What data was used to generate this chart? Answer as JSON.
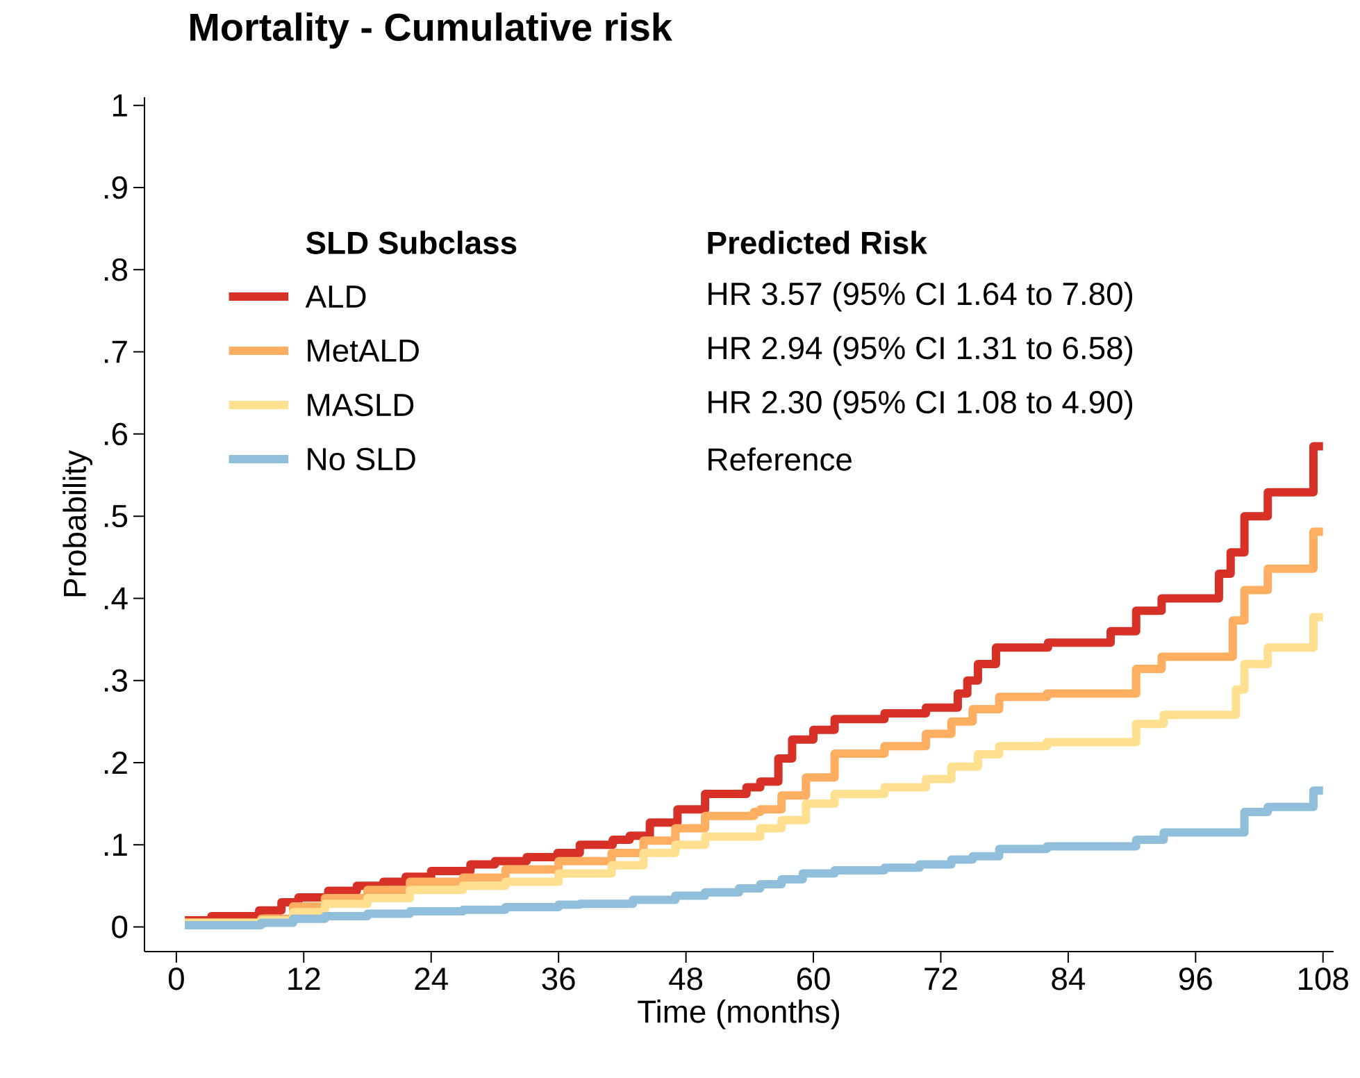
{
  "chart_data": {
    "type": "step",
    "title": "Mortality - Cumulative risk",
    "xlabel": "Time (months)",
    "ylabel": "Probability",
    "legend_title": "SLD Subclass",
    "legend": "top left",
    "grid": false,
    "annotations": [
      "Predicted Risk",
      "HR 3.57 (95% CI 1.64 to 7.80)",
      "HR 2.94 (95% CI 1.31 to 6.58)",
      "HR 2.30 (95% CI 1.08 to 4.90)",
      "Reference"
    ],
    "xlim": [
      -3,
      109
    ],
    "ylim": [
      -0.03,
      1.01
    ],
    "xticks": [
      0,
      12,
      24,
      36,
      48,
      60,
      72,
      84,
      96,
      108
    ],
    "yticks": [
      0,
      {
        "value": 0.1,
        "label": ".1"
      },
      {
        "value": 0.2,
        "label": ".2"
      },
      {
        "value": 0.3,
        "label": ".3"
      },
      {
        "value": 0.4,
        "label": ".4"
      },
      {
        "value": 0.5,
        "label": ".5"
      },
      {
        "value": 0.6,
        "label": ".6"
      },
      {
        "value": 0.7,
        "label": ".7"
      },
      {
        "value": 0.8,
        "label": ".8"
      },
      {
        "value": 0.9,
        "label": ".9"
      },
      1
    ],
    "series": [
      {
        "name": "ALD",
        "color": "#d73027",
        "x": [
          0.8,
          3.3,
          7.8,
          9.9,
          11.5,
          14.3,
          17,
          19.5,
          21.6,
          24,
          27.7,
          30,
          33,
          35.9,
          38,
          41.1,
          42.7,
          44.6,
          47.2,
          49.8,
          53.7,
          55,
          56.7,
          58,
          60,
          62,
          66.7,
          70.6,
          73.6,
          74.5,
          75.5,
          77.2,
          82.1,
          88,
          90.4,
          92.8,
          98.2,
          99.3,
          100.6,
          102.8,
          107.1,
          108
        ],
        "values": [
          0.008,
          0.013,
          0.02,
          0.03,
          0.036,
          0.044,
          0.05,
          0.055,
          0.061,
          0.068,
          0.076,
          0.08,
          0.085,
          0.09,
          0.1,
          0.106,
          0.111,
          0.127,
          0.143,
          0.162,
          0.17,
          0.177,
          0.205,
          0.228,
          0.24,
          0.253,
          0.26,
          0.267,
          0.284,
          0.3,
          0.32,
          0.34,
          0.346,
          0.36,
          0.385,
          0.4,
          0.43,
          0.456,
          0.5,
          0.529,
          0.585,
          0.585
        ]
      },
      {
        "name": "MetALD",
        "color": "#fdae61",
        "x": [
          0.8,
          8,
          11,
          14,
          18,
          22,
          27,
          31,
          36,
          41,
          44,
          47,
          49.8,
          54.4,
          55,
          57,
          59.3,
          62,
          66.7,
          70.6,
          73,
          75,
          77.5,
          82,
          90.4,
          92.8,
          99.5,
          100.6,
          102.8,
          107.1,
          108
        ],
        "values": [
          0.005,
          0.01,
          0.025,
          0.035,
          0.045,
          0.055,
          0.06,
          0.07,
          0.08,
          0.09,
          0.105,
          0.12,
          0.135,
          0.14,
          0.143,
          0.16,
          0.182,
          0.211,
          0.22,
          0.235,
          0.25,
          0.265,
          0.28,
          0.284,
          0.314,
          0.329,
          0.373,
          0.41,
          0.436,
          0.481,
          0.481
        ]
      },
      {
        "name": "MASLD",
        "color": "#fee090",
        "x": [
          0.8,
          8,
          11,
          14,
          18,
          22,
          27,
          31,
          36,
          41,
          44,
          47,
          49.8,
          55,
          57,
          59.3,
          62,
          66.7,
          70.6,
          73,
          75.5,
          77.5,
          82,
          90.4,
          93,
          99.8,
          100.6,
          102.8,
          107.1,
          108
        ],
        "values": [
          0.005,
          0.008,
          0.018,
          0.028,
          0.035,
          0.045,
          0.05,
          0.055,
          0.065,
          0.075,
          0.09,
          0.1,
          0.11,
          0.12,
          0.13,
          0.15,
          0.162,
          0.17,
          0.18,
          0.195,
          0.21,
          0.22,
          0.225,
          0.247,
          0.258,
          0.289,
          0.32,
          0.34,
          0.377,
          0.377
        ]
      },
      {
        "name": "No SLD",
        "color": "#91bfdb",
        "x": [
          0.8,
          8,
          11,
          14,
          18,
          22,
          27,
          31,
          36,
          38,
          43,
          47,
          49.8,
          53,
          55,
          57,
          59,
          62,
          66.7,
          70,
          73,
          75,
          77.5,
          82,
          90.4,
          93,
          100.6,
          102.8,
          107.1,
          108
        ],
        "values": [
          0.002,
          0.005,
          0.01,
          0.013,
          0.016,
          0.019,
          0.021,
          0.024,
          0.027,
          0.028,
          0.033,
          0.038,
          0.042,
          0.047,
          0.052,
          0.058,
          0.065,
          0.069,
          0.072,
          0.076,
          0.082,
          0.086,
          0.095,
          0.098,
          0.106,
          0.115,
          0.14,
          0.146,
          0.166,
          0.166
        ]
      }
    ]
  }
}
